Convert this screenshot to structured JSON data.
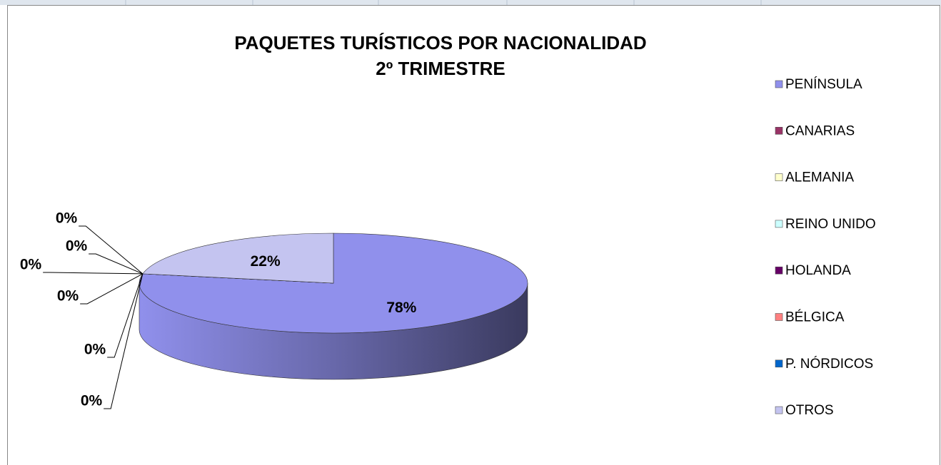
{
  "chart_data": {
    "type": "pie",
    "title": "PAQUETES TURÍSTICOS POR NACIONALIDAD",
    "subtitle": "2º TRIMESTRE",
    "categories": [
      "PENÍNSULA",
      "CANARIAS",
      "ALEMANIA",
      "REINO UNIDO",
      "HOLANDA",
      "BÉLGICA",
      "P. NÓRDICOS",
      "OTROS"
    ],
    "values": [
      78,
      0,
      0,
      0,
      0,
      0,
      0,
      22
    ],
    "value_labels": [
      "78%",
      "0%",
      "0%",
      "0%",
      "0%",
      "0%",
      "0%",
      "22%"
    ],
    "colors": [
      "#9090ec",
      "#993366",
      "#ffffcc",
      "#ccffff",
      "#660066",
      "#ff8080",
      "#0066cc",
      "#c4c4f0"
    ],
    "legend": "right"
  }
}
